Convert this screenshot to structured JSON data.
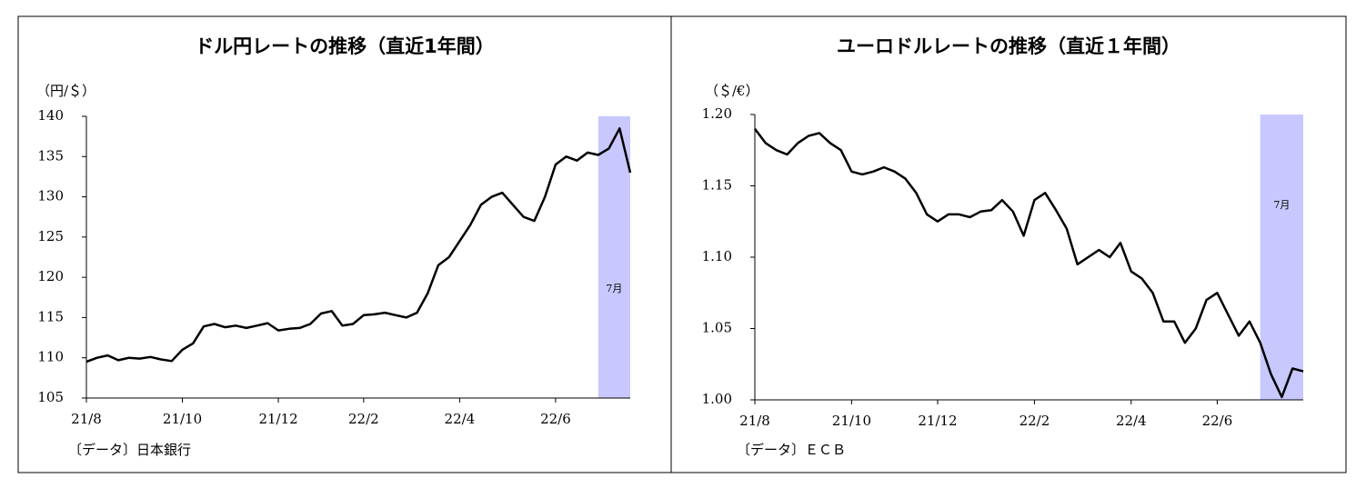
{
  "chart_data": [
    {
      "type": "line",
      "title": "ドル円レートの推移（直近1年間）",
      "unit_label": "（円/＄）",
      "source": "〔データ〕日本銀行",
      "categories": [
        "21/8",
        null,
        null,
        null,
        null,
        null,
        null,
        null,
        null,
        "21/10",
        null,
        null,
        null,
        null,
        null,
        null,
        null,
        null,
        "21/12",
        null,
        null,
        null,
        null,
        null,
        null,
        null,
        "22/2",
        null,
        null,
        null,
        null,
        null,
        null,
        null,
        null,
        "22/4",
        null,
        null,
        null,
        null,
        null,
        null,
        null,
        null,
        "22/6",
        null,
        null,
        null,
        null,
        null,
        null,
        null
      ],
      "series": [
        {
          "name": "ドル円",
          "color": "#000000",
          "values": [
            109.5,
            110.0,
            110.3,
            109.7,
            110.0,
            109.9,
            110.1,
            109.8,
            109.6,
            111.0,
            111.8,
            113.9,
            114.2,
            113.8,
            114.0,
            113.7,
            114.0,
            114.3,
            113.4,
            113.6,
            113.7,
            114.2,
            115.5,
            115.8,
            114.0,
            114.2,
            115.3,
            115.4,
            115.6,
            115.3,
            115.0,
            115.6,
            118.0,
            121.5,
            122.5,
            124.5,
            126.5,
            129.0,
            130.0,
            130.5,
            129.0,
            127.5,
            127.0,
            130.0,
            134.0,
            135.0,
            134.5,
            135.5,
            135.2,
            136.0,
            138.5,
            133.0
          ]
        }
      ],
      "ylim": [
        105,
        140
      ],
      "yticks": [
        105,
        110,
        115,
        120,
        125,
        130,
        135,
        140
      ],
      "highlight": {
        "label": "7月",
        "from": 48,
        "to": 51,
        "color": "#c8c8ff"
      }
    },
    {
      "type": "line",
      "title": "ユーロドルレートの推移（直近１年間）",
      "unit_label": "（＄/€）",
      "source": "〔データ〕ＥＣＢ",
      "categories": [
        "21/8",
        null,
        null,
        null,
        null,
        null,
        null,
        null,
        null,
        "21/10",
        null,
        null,
        null,
        null,
        null,
        null,
        null,
        "21/12",
        null,
        null,
        null,
        null,
        null,
        null,
        null,
        null,
        "22/2",
        null,
        null,
        null,
        null,
        null,
        null,
        null,
        null,
        "22/4",
        null,
        null,
        null,
        null,
        null,
        null,
        null,
        "22/6",
        null,
        null,
        null,
        null,
        null,
        null,
        null,
        null
      ],
      "series": [
        {
          "name": "ユーロドル",
          "color": "#000000",
          "values": [
            1.19,
            1.18,
            1.175,
            1.172,
            1.18,
            1.185,
            1.187,
            1.18,
            1.175,
            1.16,
            1.158,
            1.16,
            1.163,
            1.16,
            1.155,
            1.145,
            1.13,
            1.125,
            1.13,
            1.13,
            1.128,
            1.132,
            1.133,
            1.14,
            1.132,
            1.115,
            1.14,
            1.145,
            1.133,
            1.12,
            1.095,
            1.1,
            1.105,
            1.1,
            1.11,
            1.09,
            1.085,
            1.075,
            1.055,
            1.055,
            1.04,
            1.05,
            1.07,
            1.075,
            1.06,
            1.045,
            1.055,
            1.04,
            1.018,
            1.002,
            1.022,
            1.02
          ]
        }
      ],
      "ylim": [
        1.0,
        1.2
      ],
      "yticks": [
        {
          "value": 1.0,
          "label": "1.00"
        },
        1.05,
        {
          "value": 1.1,
          "label": "1.10"
        },
        1.15,
        {
          "value": 1.2,
          "label": "1.20"
        }
      ],
      "highlight": {
        "label": "7月",
        "from": 47,
        "to": 51,
        "color": "#c8c8ff"
      }
    }
  ]
}
